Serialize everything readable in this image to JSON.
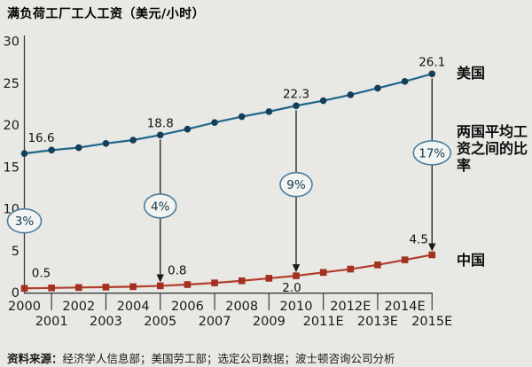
{
  "chart_data": {
    "type": "line",
    "title": "满负荷工厂工人工资（美元/小时）",
    "categories": [
      "2000",
      "2001",
      "2002",
      "2003",
      "2004",
      "2005",
      "2006",
      "2007",
      "2008",
      "2009",
      "2010",
      "2011E",
      "2012E",
      "2013E",
      "2014E",
      "2015E"
    ],
    "series": [
      {
        "name": "美国",
        "marker": "circle",
        "color": "#21678a",
        "marker_color": "#123f5a",
        "values": [
          16.6,
          17.0,
          17.3,
          17.8,
          18.2,
          18.8,
          19.5,
          20.3,
          21.0,
          21.6,
          22.3,
          22.9,
          23.6,
          24.4,
          25.2,
          26.1
        ]
      },
      {
        "name": "中国",
        "marker": "square",
        "color": "#b23c2a",
        "marker_color": "#a33120",
        "values": [
          0.5,
          0.55,
          0.6,
          0.65,
          0.7,
          0.8,
          0.95,
          1.15,
          1.4,
          1.7,
          2.0,
          2.4,
          2.8,
          3.3,
          3.9,
          4.5
        ]
      }
    ],
    "ylim": [
      0,
      30
    ],
    "yticks": [
      0,
      5,
      10,
      15,
      20,
      25,
      30
    ],
    "grid": false,
    "legend_position": "right",
    "point_labels": [
      {
        "series": 0,
        "index": 0,
        "text": "16.6",
        "placement": "above-right"
      },
      {
        "series": 0,
        "index": 5,
        "text": "18.8",
        "placement": "above"
      },
      {
        "series": 0,
        "index": 10,
        "text": "22.3",
        "placement": "above"
      },
      {
        "series": 0,
        "index": 15,
        "text": "26.1",
        "placement": "above"
      },
      {
        "series": 1,
        "index": 0,
        "text": "0.5",
        "placement": "above-right"
      },
      {
        "series": 1,
        "index": 5,
        "text": "0.8",
        "placement": "above-right"
      },
      {
        "series": 1,
        "index": 10,
        "text": "2.0",
        "placement": "below-left"
      },
      {
        "series": 1,
        "index": 15,
        "text": "4.5",
        "placement": "above-left"
      }
    ],
    "ratio_callouts": [
      {
        "label": "3%",
        "index": 0,
        "arrow": false
      },
      {
        "label": "4%",
        "index": 5,
        "arrow": true
      },
      {
        "label": "9%",
        "index": 10,
        "arrow": true
      },
      {
        "label": "17%",
        "index": 15,
        "arrow": true
      }
    ]
  },
  "labels": {
    "ratio_description": "两国平均工资之间的比率"
  },
  "source": {
    "prefix": "资料来源：",
    "text": "经济学人信息部；美国劳工部；选定公司数据；波士顿咨询公司分析"
  },
  "colors": {
    "background": "#e8e8e4",
    "us_line": "#21678a",
    "us_marker": "#123f5a",
    "china_line": "#b23c2a",
    "china_marker": "#a33120",
    "callout_border": "#4a7d9d",
    "callout_fill": "#f2f4f1",
    "arrow": "#1a1a1a",
    "axis": "#3c3c3c"
  }
}
